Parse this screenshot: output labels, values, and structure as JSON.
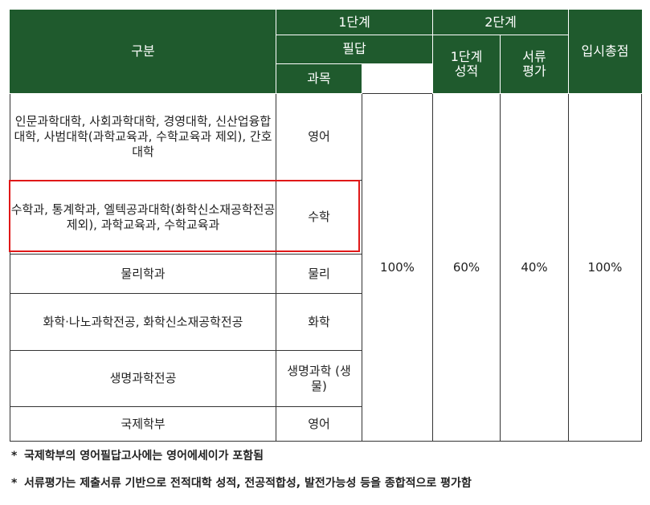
{
  "header": {
    "category": "구분",
    "stage1": "1단계",
    "stage2": "2단계",
    "written": "필답",
    "subject": "과목",
    "stage1_score": "1단계 성적",
    "document_eval": "서류 평가",
    "total": "입시총점"
  },
  "rows": [
    {
      "category": "인문과학대학, 사회과학대학, 경영대학, 신산업융합대학, 사범대학(과학교육과, 수학교육과 제외), 간호대학",
      "subject": "영어"
    },
    {
      "category": "수학과, 통계학과, 엘텍공과대학(화학신소재공학전공 제외), 과학교육과, 수학교육과",
      "subject": "수학"
    },
    {
      "category": "물리학과",
      "subject": "물리"
    },
    {
      "category": "화학·나노과학전공, 화학신소재공학전공",
      "subject": "화학"
    },
    {
      "category": "생명과학전공",
      "subject": "생명과학 (생물)"
    },
    {
      "category": "국제학부",
      "subject": "영어"
    }
  ],
  "shared": {
    "written_pct": "100%",
    "stage1_pct": "60%",
    "doc_pct": "40%",
    "total_pct": "100%"
  },
  "notes": [
    "국제학부의 영어필답고사에는 영어에세이가 포함됨",
    "서류평가는 제출서류 기반으로 전적대학 성적, 전공적합성, 발전가능성 등을 종합적으로 평가함"
  ],
  "note_marker": "*",
  "colors": {
    "header_bg": "#1f5a2d",
    "highlight": "#e01818"
  }
}
